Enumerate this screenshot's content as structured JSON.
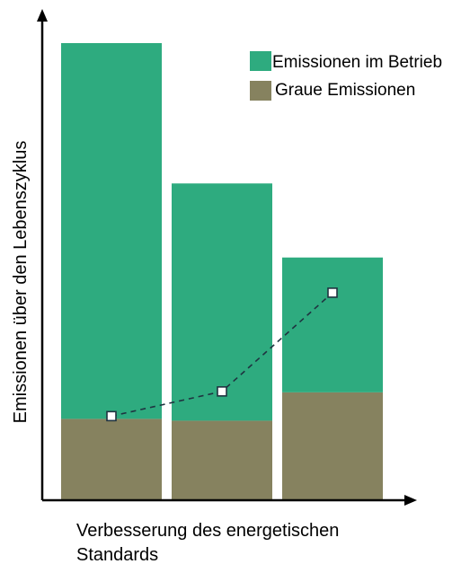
{
  "chart_data": {
    "type": "bar",
    "stacked": true,
    "categories": [
      "",
      "",
      ""
    ],
    "xlabel_lines": [
      "Verbesserung des energetischen",
      "Standards"
    ],
    "ylabel": "Emissionen über den Lebenszyklus",
    "ylim": [
      0,
      100
    ],
    "series": [
      {
        "name": "Graue Emissionen",
        "color": "#86825F",
        "values": [
          17.8,
          17.4,
          23.6
        ]
      },
      {
        "name": "Emissionen im Betrieb",
        "color": "#2EAB7F",
        "values": [
          82.2,
          51.9,
          29.5
        ]
      }
    ],
    "overlay_line": {
      "style": "dashed",
      "marker": "square",
      "values": [
        18.4,
        23.8,
        45.4
      ]
    },
    "legend_position": "top-right",
    "grid": false
  }
}
